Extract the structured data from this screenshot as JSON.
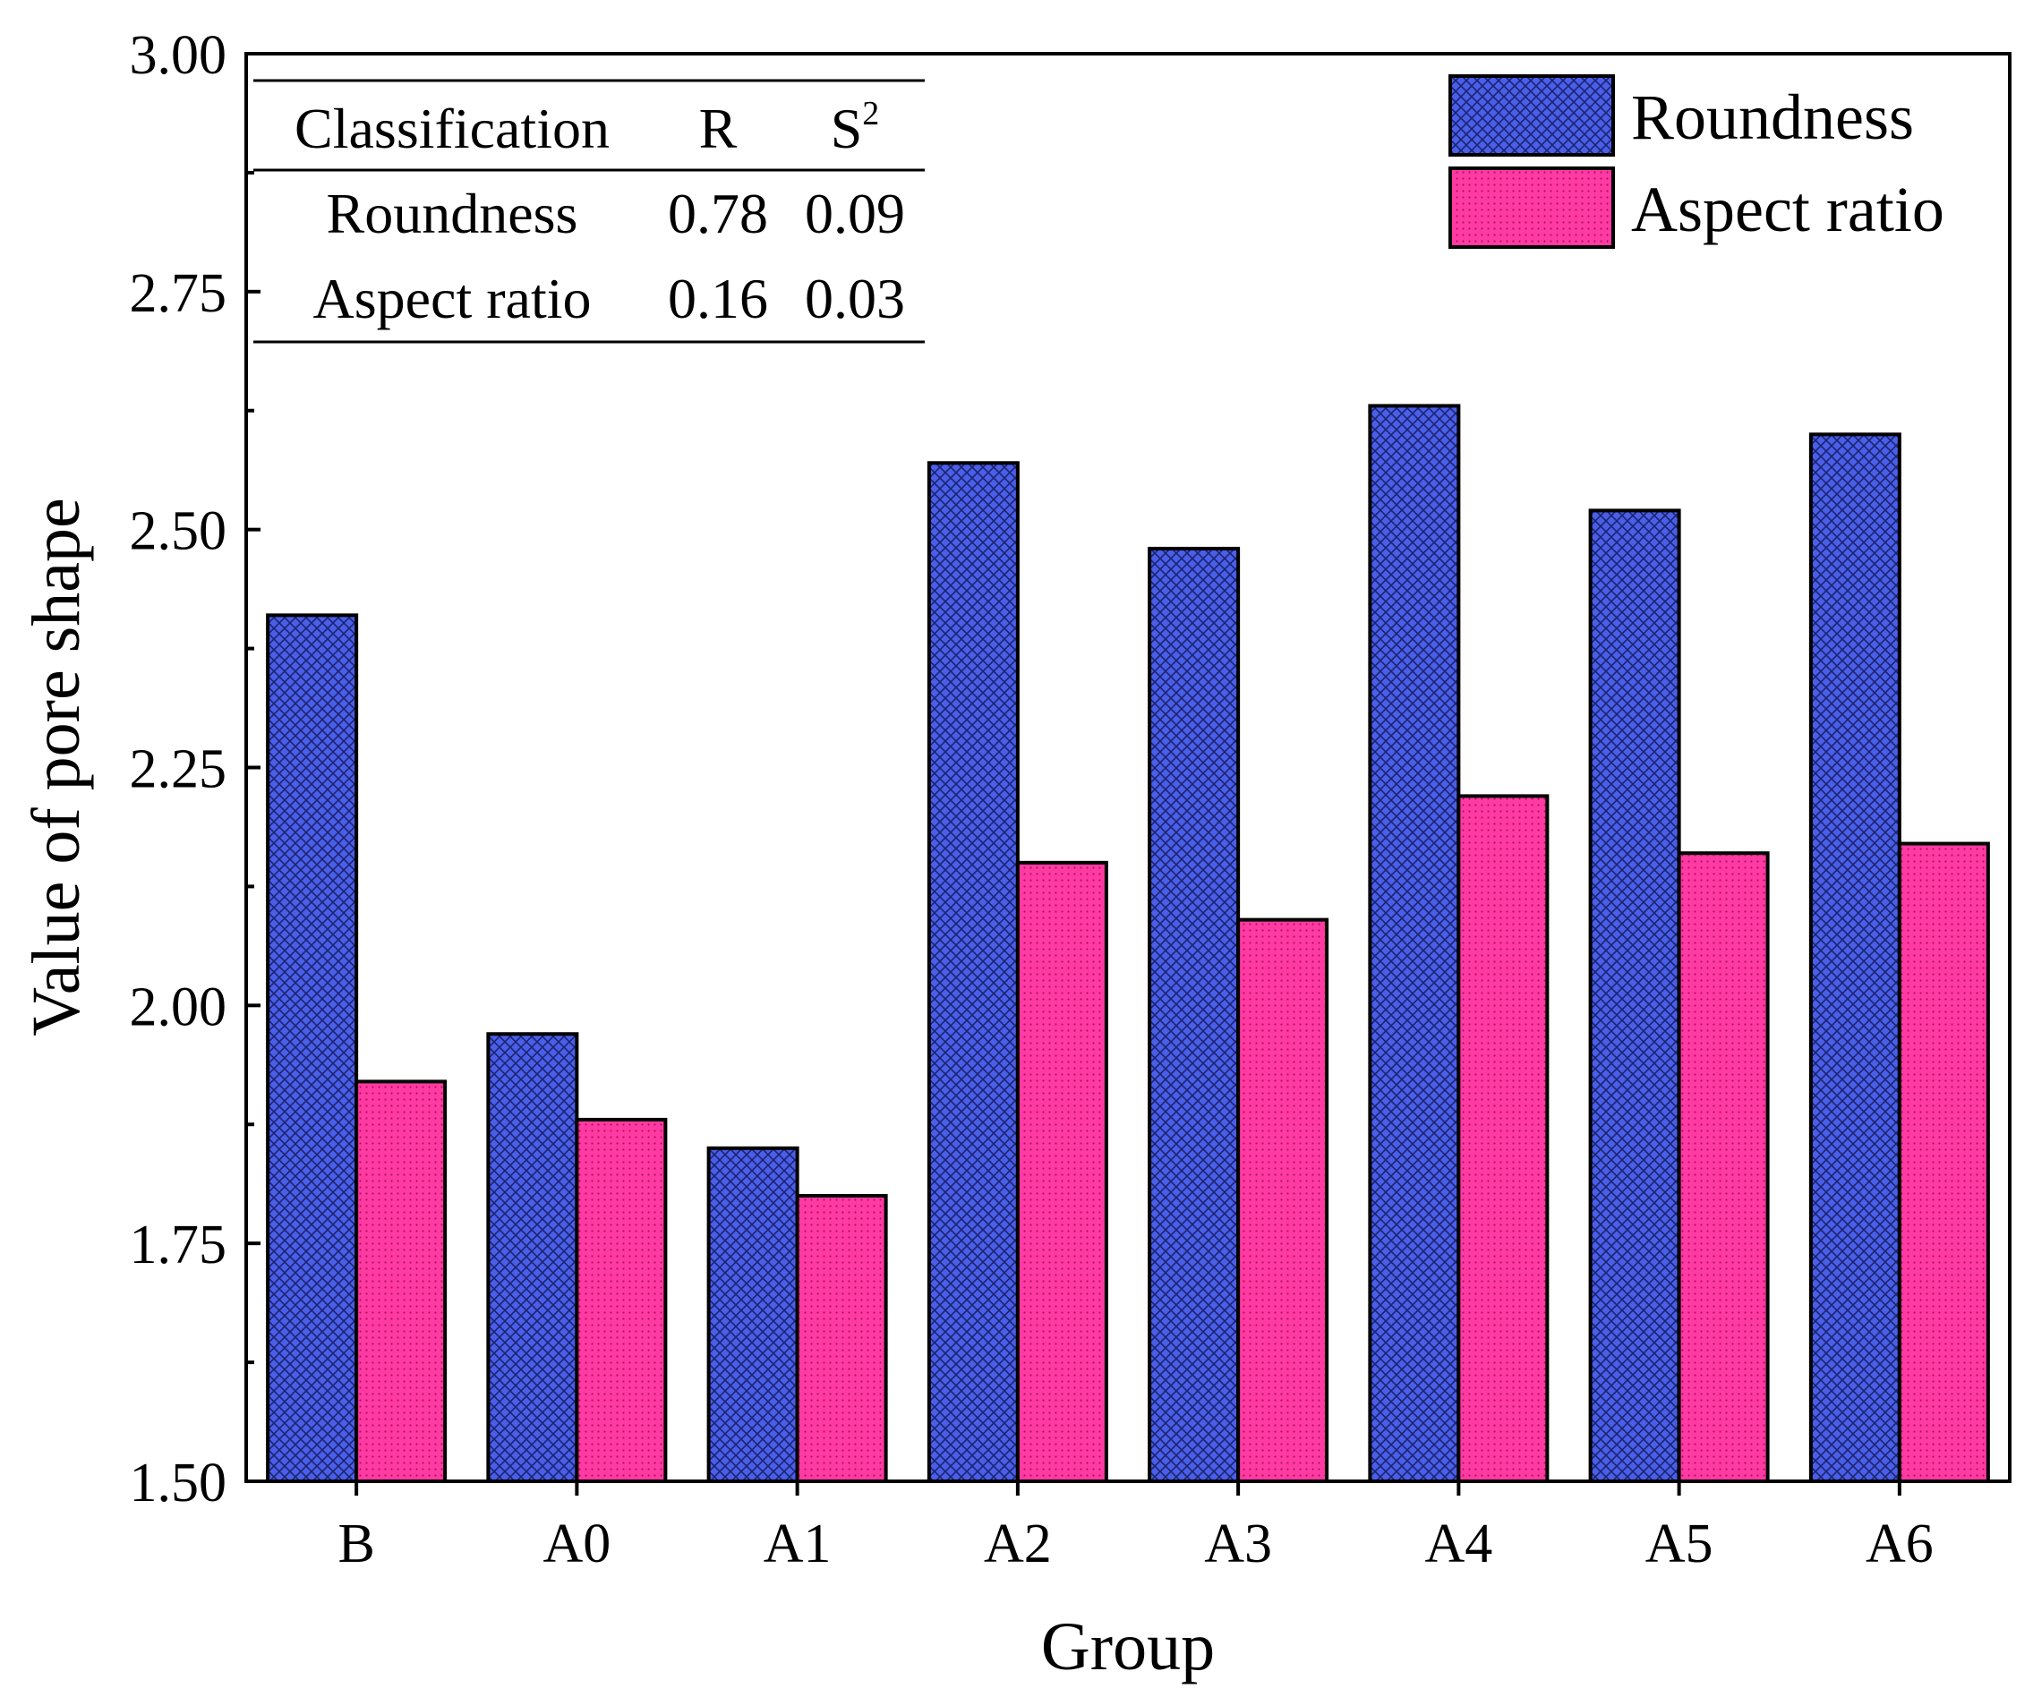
{
  "colors": {
    "roundness": "#4a5ee8",
    "aspect_ratio": "#ff3aa3",
    "axis": "#000000",
    "background": "#ffffff"
  },
  "chart_data": {
    "type": "bar",
    "xlabel": "Group",
    "ylabel": "Value of pore shape",
    "ylim": [
      1.5,
      3.0
    ],
    "yticks": [
      1.5,
      1.75,
      2.0,
      2.25,
      2.5,
      2.75,
      3.0
    ],
    "ytick_labels": [
      "1.50",
      "1.75",
      "2.00",
      "2.25",
      "2.50",
      "2.75",
      "3.00"
    ],
    "categories": [
      "B",
      "A0",
      "A1",
      "A2",
      "A3",
      "A4",
      "A5",
      "A6"
    ],
    "series": [
      {
        "name": "Roundness",
        "values": [
          2.41,
          1.97,
          1.85,
          2.57,
          2.48,
          2.63,
          2.52,
          2.6
        ]
      },
      {
        "name": "Aspect ratio",
        "values": [
          1.92,
          1.88,
          1.8,
          2.15,
          2.09,
          2.22,
          2.16,
          2.17
        ]
      }
    ],
    "legend_position": "top-right",
    "inset_table": {
      "headers": [
        "Classification",
        "R",
        "S",
        "2"
      ],
      "rows": [
        [
          "Roundness",
          "0.78",
          "0.09"
        ],
        [
          "Aspect ratio",
          "0.16",
          "0.03"
        ]
      ]
    }
  }
}
